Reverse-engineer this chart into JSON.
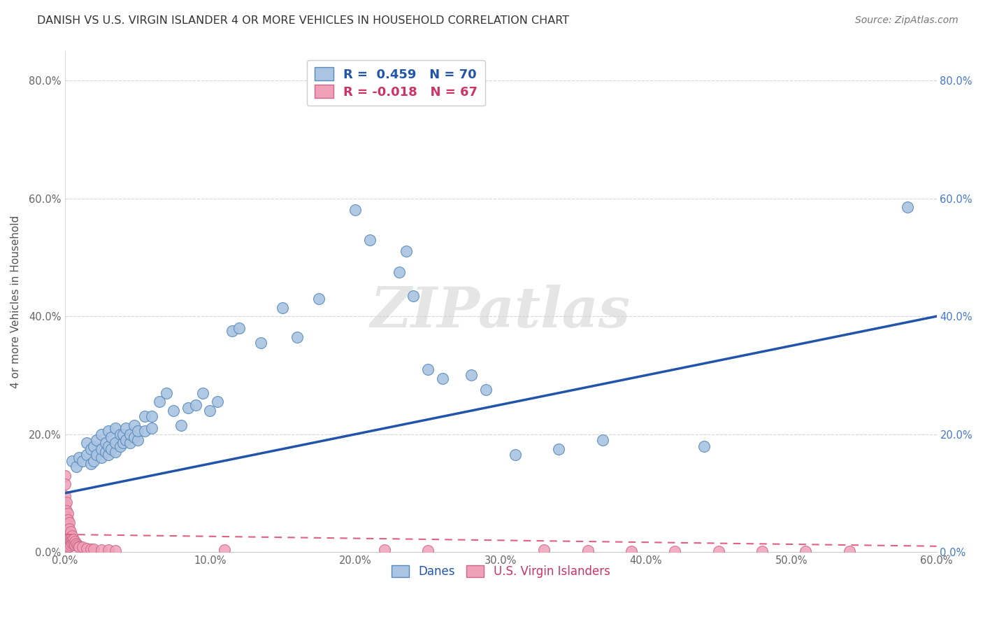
{
  "title": "DANISH VS U.S. VIRGIN ISLANDER 4 OR MORE VEHICLES IN HOUSEHOLD CORRELATION CHART",
  "source": "Source: ZipAtlas.com",
  "ylabel": "4 or more Vehicles in Household",
  "watermark": "ZIPatlas",
  "blue_R": 0.459,
  "blue_N": 70,
  "pink_R": -0.018,
  "pink_N": 67,
  "xlim": [
    0.0,
    0.6
  ],
  "ylim": [
    0.0,
    0.85
  ],
  "xticks": [
    0.0,
    0.1,
    0.2,
    0.3,
    0.4,
    0.5,
    0.6
  ],
  "yticks": [
    0.0,
    0.2,
    0.4,
    0.6,
    0.8
  ],
  "blue_color": "#aac4e2",
  "blue_line_color": "#2255aa",
  "pink_color": "#f0a0b8",
  "pink_line_color": "#e06080",
  "blue_dots": [
    [
      0.005,
      0.155
    ],
    [
      0.008,
      0.145
    ],
    [
      0.01,
      0.16
    ],
    [
      0.012,
      0.155
    ],
    [
      0.015,
      0.165
    ],
    [
      0.015,
      0.185
    ],
    [
      0.018,
      0.15
    ],
    [
      0.018,
      0.175
    ],
    [
      0.02,
      0.155
    ],
    [
      0.02,
      0.18
    ],
    [
      0.022,
      0.165
    ],
    [
      0.022,
      0.19
    ],
    [
      0.025,
      0.16
    ],
    [
      0.025,
      0.175
    ],
    [
      0.025,
      0.2
    ],
    [
      0.028,
      0.17
    ],
    [
      0.028,
      0.185
    ],
    [
      0.03,
      0.165
    ],
    [
      0.03,
      0.18
    ],
    [
      0.03,
      0.205
    ],
    [
      0.032,
      0.175
    ],
    [
      0.032,
      0.195
    ],
    [
      0.035,
      0.17
    ],
    [
      0.035,
      0.185
    ],
    [
      0.035,
      0.21
    ],
    [
      0.038,
      0.18
    ],
    [
      0.038,
      0.2
    ],
    [
      0.04,
      0.185
    ],
    [
      0.04,
      0.2
    ],
    [
      0.042,
      0.19
    ],
    [
      0.042,
      0.21
    ],
    [
      0.045,
      0.185
    ],
    [
      0.045,
      0.2
    ],
    [
      0.048,
      0.195
    ],
    [
      0.048,
      0.215
    ],
    [
      0.05,
      0.19
    ],
    [
      0.05,
      0.205
    ],
    [
      0.055,
      0.205
    ],
    [
      0.055,
      0.23
    ],
    [
      0.06,
      0.21
    ],
    [
      0.06,
      0.23
    ],
    [
      0.065,
      0.255
    ],
    [
      0.07,
      0.27
    ],
    [
      0.075,
      0.24
    ],
    [
      0.08,
      0.215
    ],
    [
      0.085,
      0.245
    ],
    [
      0.09,
      0.25
    ],
    [
      0.095,
      0.27
    ],
    [
      0.1,
      0.24
    ],
    [
      0.105,
      0.255
    ],
    [
      0.115,
      0.375
    ],
    [
      0.12,
      0.38
    ],
    [
      0.135,
      0.355
    ],
    [
      0.15,
      0.415
    ],
    [
      0.16,
      0.365
    ],
    [
      0.175,
      0.43
    ],
    [
      0.2,
      0.58
    ],
    [
      0.21,
      0.53
    ],
    [
      0.23,
      0.475
    ],
    [
      0.235,
      0.51
    ],
    [
      0.24,
      0.435
    ],
    [
      0.25,
      0.31
    ],
    [
      0.26,
      0.295
    ],
    [
      0.28,
      0.3
    ],
    [
      0.29,
      0.275
    ],
    [
      0.31,
      0.165
    ],
    [
      0.34,
      0.175
    ],
    [
      0.37,
      0.19
    ],
    [
      0.44,
      0.18
    ],
    [
      0.58,
      0.585
    ]
  ],
  "pink_dots": [
    [
      0.0,
      0.13
    ],
    [
      0.0,
      0.115
    ],
    [
      0.0,
      0.095
    ],
    [
      0.0,
      0.08
    ],
    [
      0.0,
      0.065
    ],
    [
      0.0,
      0.05
    ],
    [
      0.0,
      0.04
    ],
    [
      0.0,
      0.03
    ],
    [
      0.0,
      0.025
    ],
    [
      0.0,
      0.02
    ],
    [
      0.001,
      0.085
    ],
    [
      0.001,
      0.07
    ],
    [
      0.001,
      0.06
    ],
    [
      0.001,
      0.05
    ],
    [
      0.001,
      0.04
    ],
    [
      0.001,
      0.03
    ],
    [
      0.001,
      0.025
    ],
    [
      0.001,
      0.02
    ],
    [
      0.001,
      0.015
    ],
    [
      0.001,
      0.01
    ],
    [
      0.002,
      0.065
    ],
    [
      0.002,
      0.055
    ],
    [
      0.002,
      0.045
    ],
    [
      0.002,
      0.035
    ],
    [
      0.002,
      0.025
    ],
    [
      0.002,
      0.018
    ],
    [
      0.002,
      0.012
    ],
    [
      0.002,
      0.008
    ],
    [
      0.003,
      0.05
    ],
    [
      0.003,
      0.04
    ],
    [
      0.003,
      0.03
    ],
    [
      0.003,
      0.022
    ],
    [
      0.003,
      0.015
    ],
    [
      0.003,
      0.01
    ],
    [
      0.004,
      0.035
    ],
    [
      0.004,
      0.025
    ],
    [
      0.004,
      0.018
    ],
    [
      0.004,
      0.012
    ],
    [
      0.005,
      0.028
    ],
    [
      0.005,
      0.02
    ],
    [
      0.005,
      0.015
    ],
    [
      0.006,
      0.022
    ],
    [
      0.006,
      0.015
    ],
    [
      0.007,
      0.018
    ],
    [
      0.007,
      0.012
    ],
    [
      0.008,
      0.015
    ],
    [
      0.009,
      0.012
    ],
    [
      0.01,
      0.01
    ],
    [
      0.01,
      0.008
    ],
    [
      0.012,
      0.008
    ],
    [
      0.015,
      0.006
    ],
    [
      0.018,
      0.005
    ],
    [
      0.02,
      0.005
    ],
    [
      0.025,
      0.004
    ],
    [
      0.03,
      0.004
    ],
    [
      0.035,
      0.003
    ],
    [
      0.11,
      0.004
    ],
    [
      0.22,
      0.004
    ],
    [
      0.25,
      0.003
    ],
    [
      0.33,
      0.004
    ],
    [
      0.36,
      0.003
    ],
    [
      0.39,
      0.002
    ],
    [
      0.42,
      0.002
    ],
    [
      0.45,
      0.002
    ],
    [
      0.48,
      0.002
    ],
    [
      0.51,
      0.001
    ],
    [
      0.54,
      0.001
    ]
  ]
}
